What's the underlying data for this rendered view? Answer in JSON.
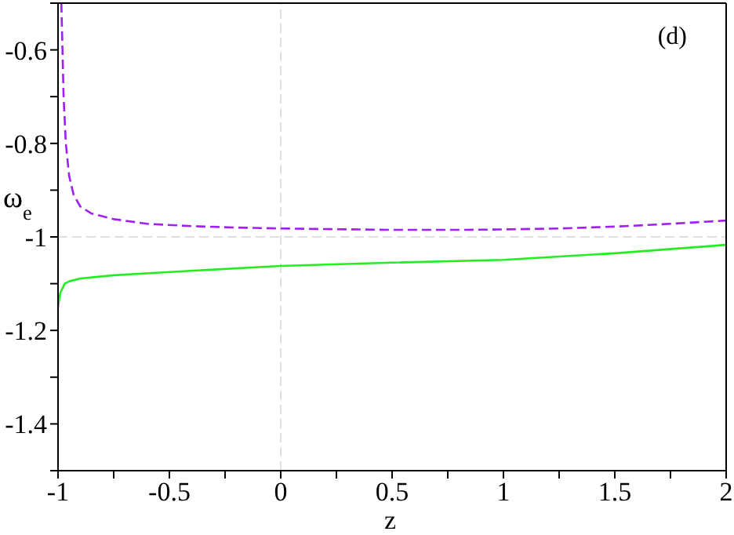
{
  "chart_data": {
    "type": "line",
    "xlabel": "z",
    "ylabel": "ω$_{e}$",
    "annotations": [
      "(d)"
    ],
    "xlim": [
      -1,
      2
    ],
    "ylim": [
      -1.5,
      -0.5
    ],
    "xticks": [
      -1,
      {
        "value": -0.75,
        "label": null
      },
      -0.5,
      {
        "value": -0.25,
        "label": null
      },
      0,
      {
        "value": 0.25,
        "label": null
      },
      0.5,
      {
        "value": 0.75,
        "label": null
      },
      1,
      {
        "value": 1.25,
        "label": null
      },
      1.5,
      {
        "value": 1.75,
        "label": null
      },
      2
    ],
    "yticks": [
      {
        "value": -1.5,
        "label": null
      },
      -1.4,
      {
        "value": -1.3,
        "label": null
      },
      -1.2,
      {
        "value": -1.1,
        "label": null
      },
      -1,
      {
        "value": -0.9,
        "label": null
      },
      -0.8,
      {
        "value": -0.7,
        "label": null
      },
      -0.6,
      {
        "value": -0.5,
        "label": null
      }
    ],
    "marker": "none",
    "ref_lines": [
      {
        "axis": "x",
        "value": 0,
        "color": "#e0e0e0",
        "line_style": "dashed"
      },
      {
        "axis": "y",
        "value": -1,
        "color": "#e0e0e0",
        "line_style": "dashed"
      }
    ],
    "series": [
      {
        "color": "#a020f0",
        "line_style": "dashed",
        "x": [
          -0.985,
          -0.975,
          -0.965,
          -0.95,
          -0.93,
          -0.9,
          -0.85,
          -0.75,
          -0.6,
          -0.4,
          -0.2,
          0,
          0.5,
          0.8,
          1.0,
          1.25,
          1.5,
          1.75,
          2
        ],
        "values": [
          -0.5,
          -0.7,
          -0.8,
          -0.87,
          -0.91,
          -0.935,
          -0.95,
          -0.962,
          -0.972,
          -0.977,
          -0.98,
          -0.982,
          -0.985,
          -0.985,
          -0.984,
          -0.982,
          -0.978,
          -0.972,
          -0.965
        ]
      },
      {
        "color": "#22ee22",
        "line_style": "solid",
        "x": [
          -1,
          -0.99,
          -0.97,
          -0.95,
          -0.9,
          -0.75,
          -0.5,
          0,
          0.5,
          1,
          1.5,
          2
        ],
        "values": [
          -1.15,
          -1.12,
          -1.1,
          -1.095,
          -1.089,
          -1.082,
          -1.075,
          -1.062,
          -1.055,
          -1.049,
          -1.035,
          -1.017
        ]
      }
    ]
  }
}
